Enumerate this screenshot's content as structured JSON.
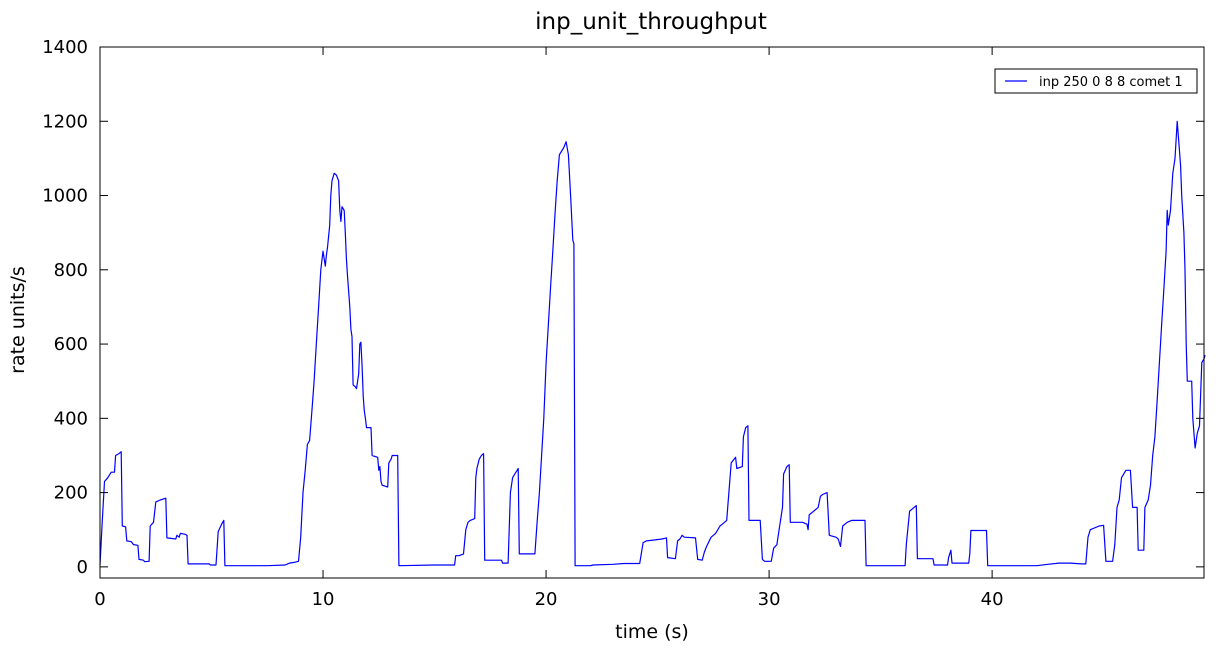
{
  "chart_data": {
    "type": "line",
    "title": "inp_unit_throughput",
    "xlabel": "time (s)",
    "ylabel": "rate units/s",
    "xlim": [
      0,
      49.5
    ],
    "ylim": [
      -30,
      1400
    ],
    "xticks": [
      0,
      10,
      20,
      30,
      40
    ],
    "yticks": [
      0,
      200,
      400,
      600,
      800,
      1000,
      1200,
      1400
    ],
    "grid": false,
    "legend_position": "top-right",
    "series": [
      {
        "name": "inp 250 0 8 8 comet 1",
        "color": "#0000ff",
        "points": [
          [
            0.0,
            5
          ],
          [
            0.1,
            120
          ],
          [
            0.2,
            230
          ],
          [
            0.35,
            240
          ],
          [
            0.5,
            255
          ],
          [
            0.65,
            255
          ],
          [
            0.7,
            300
          ],
          [
            0.85,
            305
          ],
          [
            0.95,
            310
          ],
          [
            1.0,
            110
          ],
          [
            1.15,
            108
          ],
          [
            1.2,
            70
          ],
          [
            1.4,
            68
          ],
          [
            1.5,
            60
          ],
          [
            1.7,
            58
          ],
          [
            1.75,
            20
          ],
          [
            1.95,
            18
          ],
          [
            2.0,
            14
          ],
          [
            2.2,
            15
          ],
          [
            2.25,
            110
          ],
          [
            2.4,
            120
          ],
          [
            2.5,
            175
          ],
          [
            2.7,
            180
          ],
          [
            2.95,
            185
          ],
          [
            3.0,
            78
          ],
          [
            3.4,
            75
          ],
          [
            3.45,
            85
          ],
          [
            3.55,
            80
          ],
          [
            3.6,
            90
          ],
          [
            3.8,
            88
          ],
          [
            3.9,
            85
          ],
          [
            3.95,
            8
          ],
          [
            4.5,
            8
          ],
          [
            4.9,
            8
          ],
          [
            4.95,
            5
          ],
          [
            5.2,
            5
          ],
          [
            5.3,
            95
          ],
          [
            5.45,
            115
          ],
          [
            5.55,
            125
          ],
          [
            5.6,
            3
          ],
          [
            7.5,
            3
          ],
          [
            8.3,
            5
          ],
          [
            8.5,
            10
          ],
          [
            8.7,
            12
          ],
          [
            8.9,
            15
          ],
          [
            9.0,
            80
          ],
          [
            9.1,
            200
          ],
          [
            9.2,
            260
          ],
          [
            9.3,
            330
          ],
          [
            9.4,
            340
          ],
          [
            9.5,
            420
          ],
          [
            9.6,
            500
          ],
          [
            9.7,
            600
          ],
          [
            9.8,
            700
          ],
          [
            9.9,
            800
          ],
          [
            10.0,
            850
          ],
          [
            10.1,
            810
          ],
          [
            10.15,
            840
          ],
          [
            10.2,
            860
          ],
          [
            10.3,
            920
          ],
          [
            10.35,
            1000
          ],
          [
            10.4,
            1040
          ],
          [
            10.5,
            1060
          ],
          [
            10.6,
            1055
          ],
          [
            10.7,
            1040
          ],
          [
            10.75,
            960
          ],
          [
            10.8,
            930
          ],
          [
            10.85,
            970
          ],
          [
            10.95,
            960
          ],
          [
            11.0,
            900
          ],
          [
            11.05,
            830
          ],
          [
            11.1,
            780
          ],
          [
            11.2,
            700
          ],
          [
            11.25,
            640
          ],
          [
            11.3,
            620
          ],
          [
            11.35,
            490
          ],
          [
            11.45,
            485
          ],
          [
            11.5,
            480
          ],
          [
            11.6,
            520
          ],
          [
            11.65,
            600
          ],
          [
            11.7,
            605
          ],
          [
            11.75,
            540
          ],
          [
            11.8,
            460
          ],
          [
            11.85,
            420
          ],
          [
            11.9,
            400
          ],
          [
            11.95,
            375
          ],
          [
            12.15,
            375
          ],
          [
            12.2,
            300
          ],
          [
            12.45,
            295
          ],
          [
            12.5,
            260
          ],
          [
            12.55,
            270
          ],
          [
            12.6,
            230
          ],
          [
            12.65,
            220
          ],
          [
            12.9,
            215
          ],
          [
            12.95,
            280
          ],
          [
            13.05,
            290
          ],
          [
            13.1,
            300
          ],
          [
            13.35,
            300
          ],
          [
            13.4,
            3
          ],
          [
            15.0,
            5
          ],
          [
            15.9,
            5
          ],
          [
            15.95,
            30
          ],
          [
            16.1,
            30
          ],
          [
            16.3,
            35
          ],
          [
            16.4,
            100
          ],
          [
            16.5,
            120
          ],
          [
            16.6,
            125
          ],
          [
            16.8,
            130
          ],
          [
            16.85,
            240
          ],
          [
            16.9,
            265
          ],
          [
            17.0,
            290
          ],
          [
            17.1,
            300
          ],
          [
            17.2,
            305
          ],
          [
            17.25,
            18
          ],
          [
            17.6,
            18
          ],
          [
            18.0,
            18
          ],
          [
            18.05,
            10
          ],
          [
            18.3,
            10
          ],
          [
            18.4,
            200
          ],
          [
            18.5,
            240
          ],
          [
            18.6,
            250
          ],
          [
            18.7,
            260
          ],
          [
            18.75,
            265
          ],
          [
            18.8,
            35
          ],
          [
            19.5,
            35
          ],
          [
            19.6,
            120
          ],
          [
            19.7,
            200
          ],
          [
            19.8,
            300
          ],
          [
            19.9,
            400
          ],
          [
            20.0,
            550
          ],
          [
            20.1,
            650
          ],
          [
            20.2,
            750
          ],
          [
            20.3,
            850
          ],
          [
            20.4,
            950
          ],
          [
            20.5,
            1040
          ],
          [
            20.6,
            1110
          ],
          [
            20.7,
            1120
          ],
          [
            20.8,
            1130
          ],
          [
            20.9,
            1145
          ],
          [
            21.0,
            1110
          ],
          [
            21.1,
            1000
          ],
          [
            21.2,
            880
          ],
          [
            21.25,
            870
          ],
          [
            21.3,
            3
          ],
          [
            22.0,
            3
          ],
          [
            22.1,
            5
          ],
          [
            23.0,
            7
          ],
          [
            23.5,
            9
          ],
          [
            24.2,
            9
          ],
          [
            24.35,
            65
          ],
          [
            24.5,
            70
          ],
          [
            24.8,
            72
          ],
          [
            25.2,
            75
          ],
          [
            25.4,
            78
          ],
          [
            25.45,
            25
          ],
          [
            25.8,
            22
          ],
          [
            25.9,
            70
          ],
          [
            26.0,
            75
          ],
          [
            26.1,
            85
          ],
          [
            26.2,
            80
          ],
          [
            26.7,
            78
          ],
          [
            26.8,
            20
          ],
          [
            27.0,
            18
          ],
          [
            27.1,
            40
          ],
          [
            27.2,
            55
          ],
          [
            27.4,
            80
          ],
          [
            27.6,
            90
          ],
          [
            27.8,
            110
          ],
          [
            27.9,
            115
          ],
          [
            28.1,
            125
          ],
          [
            28.3,
            280
          ],
          [
            28.5,
            295
          ],
          [
            28.55,
            265
          ],
          [
            28.8,
            270
          ],
          [
            28.85,
            350
          ],
          [
            28.95,
            375
          ],
          [
            29.05,
            380
          ],
          [
            29.1,
            125
          ],
          [
            29.6,
            125
          ],
          [
            29.7,
            20
          ],
          [
            29.8,
            15
          ],
          [
            30.1,
            15
          ],
          [
            30.2,
            50
          ],
          [
            30.35,
            60
          ],
          [
            30.45,
            100
          ],
          [
            30.6,
            160
          ],
          [
            30.65,
            250
          ],
          [
            30.8,
            270
          ],
          [
            30.9,
            275
          ],
          [
            30.95,
            120
          ],
          [
            31.5,
            120
          ],
          [
            31.7,
            115
          ],
          [
            31.75,
            100
          ],
          [
            31.8,
            140
          ],
          [
            31.9,
            145
          ],
          [
            32.2,
            160
          ],
          [
            32.3,
            190
          ],
          [
            32.4,
            195
          ],
          [
            32.6,
            200
          ],
          [
            32.7,
            85
          ],
          [
            33.0,
            80
          ],
          [
            33.1,
            75
          ],
          [
            33.2,
            55
          ],
          [
            33.3,
            110
          ],
          [
            33.5,
            120
          ],
          [
            33.7,
            125
          ],
          [
            34.3,
            125
          ],
          [
            34.35,
            3
          ],
          [
            35.0,
            3
          ],
          [
            36.1,
            3
          ],
          [
            36.15,
            60
          ],
          [
            36.3,
            150
          ],
          [
            36.5,
            160
          ],
          [
            36.6,
            165
          ],
          [
            36.65,
            22
          ],
          [
            37.0,
            22
          ],
          [
            37.35,
            22
          ],
          [
            37.4,
            5
          ],
          [
            37.7,
            5
          ],
          [
            38.0,
            5
          ],
          [
            38.05,
            25
          ],
          [
            38.15,
            45
          ],
          [
            38.2,
            10
          ],
          [
            38.5,
            10
          ],
          [
            38.95,
            10
          ],
          [
            39.0,
            35
          ],
          [
            39.05,
            98
          ],
          [
            39.3,
            98
          ],
          [
            39.75,
            98
          ],
          [
            39.8,
            3
          ],
          [
            42.0,
            3
          ],
          [
            42.5,
            7
          ],
          [
            43.0,
            10
          ],
          [
            43.5,
            10
          ],
          [
            44.0,
            8
          ],
          [
            44.2,
            8
          ],
          [
            44.3,
            80
          ],
          [
            44.4,
            100
          ],
          [
            44.8,
            110
          ],
          [
            45.0,
            112
          ],
          [
            45.1,
            15
          ],
          [
            45.4,
            15
          ],
          [
            45.5,
            60
          ],
          [
            45.6,
            160
          ],
          [
            45.7,
            180
          ],
          [
            45.8,
            240
          ],
          [
            46.0,
            260
          ],
          [
            46.2,
            260
          ],
          [
            46.3,
            160
          ],
          [
            46.5,
            160
          ],
          [
            46.55,
            45
          ],
          [
            46.8,
            45
          ],
          [
            46.85,
            160
          ],
          [
            47.0,
            180
          ],
          [
            47.1,
            220
          ],
          [
            47.2,
            300
          ],
          [
            47.3,
            350
          ],
          [
            47.4,
            450
          ],
          [
            47.5,
            550
          ],
          [
            47.6,
            650
          ],
          [
            47.7,
            750
          ],
          [
            47.8,
            850
          ],
          [
            47.85,
            960
          ],
          [
            47.9,
            920
          ],
          [
            48.0,
            960
          ],
          [
            48.1,
            1060
          ],
          [
            48.2,
            1100
          ],
          [
            48.3,
            1200
          ],
          [
            48.4,
            1120
          ],
          [
            48.45,
            1080
          ],
          [
            48.5,
            1000
          ],
          [
            48.55,
            950
          ],
          [
            48.6,
            900
          ],
          [
            48.65,
            800
          ],
          [
            48.7,
            600
          ],
          [
            48.75,
            500
          ],
          [
            48.95,
            500
          ],
          [
            49.0,
            400
          ],
          [
            49.1,
            320
          ],
          [
            49.15,
            340
          ],
          [
            49.2,
            360
          ],
          [
            49.3,
            380
          ],
          [
            49.35,
            470
          ],
          [
            49.4,
            550
          ],
          [
            49.5,
            560
          ],
          [
            49.55,
            570
          ]
        ]
      }
    ]
  }
}
